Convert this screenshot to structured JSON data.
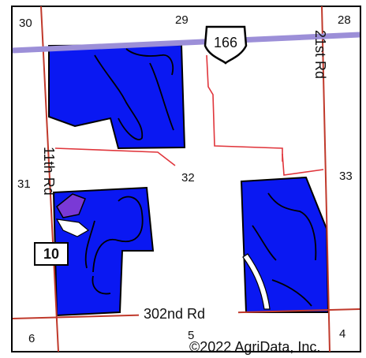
{
  "map": {
    "section_labels": {
      "s30": "30",
      "s29": "29",
      "s28": "28",
      "s31": "31",
      "s32": "32",
      "s33": "33",
      "s6": "6",
      "s5": "5",
      "s4": "4"
    },
    "road_labels": {
      "rd_21st": "21st Rd",
      "rd_11th": "11th Rd",
      "rd_302nd": "302nd Rd"
    },
    "highway_shield": "166",
    "route_shield": "10",
    "copyright": "©2022 AgriData, Inc.",
    "colors": {
      "field": "#0a18f2",
      "highway": "#9c8fd8",
      "road": "#e0353b",
      "purple_soil": "#7a39d6",
      "boundary": "#111111"
    }
  }
}
